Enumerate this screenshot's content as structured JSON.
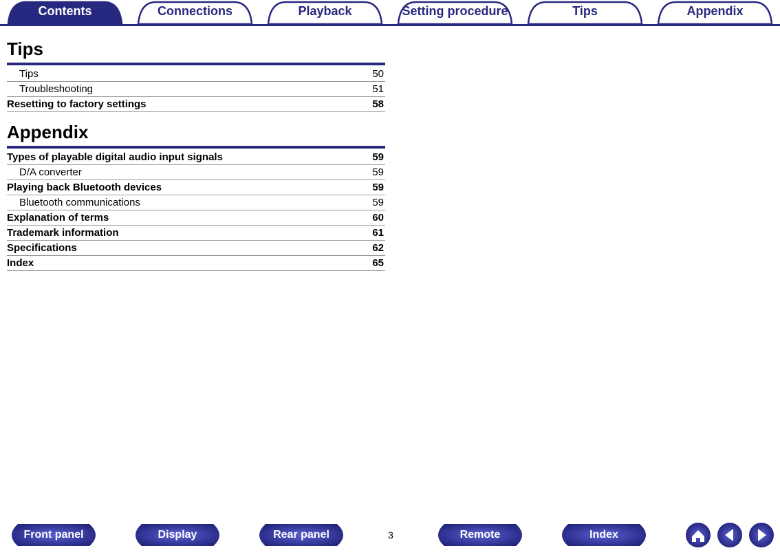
{
  "colors": {
    "brand": "#27287f",
    "tab_inactive_fill": "#ffffff",
    "tab_border": "#27287f",
    "rule_gray": "#9a9a9a",
    "text": "#000000",
    "pill_grad_light": "#5a5fd0",
    "pill_grad_dark": "#1a1b70"
  },
  "tabs": [
    {
      "label": "Contents",
      "active": true
    },
    {
      "label": "Connections",
      "active": false
    },
    {
      "label": "Playback",
      "active": false
    },
    {
      "label": "Setting procedure",
      "active": false
    },
    {
      "label": "Tips",
      "active": false
    },
    {
      "label": "Appendix",
      "active": false
    }
  ],
  "sections": [
    {
      "title": "Tips",
      "rows": [
        {
          "label": "Tips",
          "page": "50",
          "bold": false,
          "indent": true
        },
        {
          "label": "Troubleshooting",
          "page": "51",
          "bold": false,
          "indent": true
        },
        {
          "label": "Resetting to factory settings",
          "page": "58",
          "bold": true,
          "indent": false
        }
      ]
    },
    {
      "title": "Appendix",
      "rows": [
        {
          "label": "Types of playable digital audio input signals",
          "page": "59",
          "bold": true,
          "indent": false
        },
        {
          "label": "D/A converter",
          "page": "59",
          "bold": false,
          "indent": true
        },
        {
          "label": "Playing back Bluetooth devices",
          "page": "59",
          "bold": true,
          "indent": false
        },
        {
          "label": "Bluetooth communications",
          "page": "59",
          "bold": false,
          "indent": true
        },
        {
          "label": "Explanation of terms",
          "page": "60",
          "bold": true,
          "indent": false
        },
        {
          "label": "Trademark information",
          "page": "61",
          "bold": true,
          "indent": false
        },
        {
          "label": "Specifications",
          "page": "62",
          "bold": true,
          "indent": false
        },
        {
          "label": "Index",
          "page": "65",
          "bold": true,
          "indent": false
        }
      ]
    }
  ],
  "bottom_nav": {
    "pills": [
      "Front panel",
      "Display",
      "Rear panel"
    ],
    "page_number": "3",
    "pills_right": [
      "Remote",
      "Index"
    ]
  }
}
